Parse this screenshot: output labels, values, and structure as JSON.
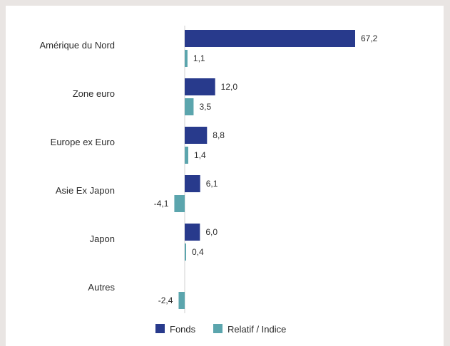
{
  "chart_data": {
    "type": "bar",
    "orientation": "horizontal",
    "categories": [
      "Amérique du Nord",
      "Zone euro",
      "Europe ex Euro",
      "Asie Ex Japon",
      "Japon",
      "Autres"
    ],
    "series": [
      {
        "name": "Fonds",
        "color": "#283a8c",
        "values": [
          67.2,
          12.0,
          8.8,
          6.1,
          6.0,
          null
        ],
        "labels": [
          "67,2",
          "12,0",
          "8,8",
          "6,1",
          "6,0",
          ""
        ]
      },
      {
        "name": "Relatif / Indice",
        "color": "#5ba5ad",
        "values": [
          1.1,
          3.5,
          1.4,
          -4.1,
          0.4,
          -2.4
        ],
        "labels": [
          "1,1",
          "3,5",
          "1,4",
          "-4,1",
          "0,4",
          "-2,4"
        ]
      }
    ],
    "xlim": [
      -4.1,
      67.2
    ],
    "grid": false,
    "legend_position": "bottom",
    "axis_color": "#d0d0d0"
  }
}
